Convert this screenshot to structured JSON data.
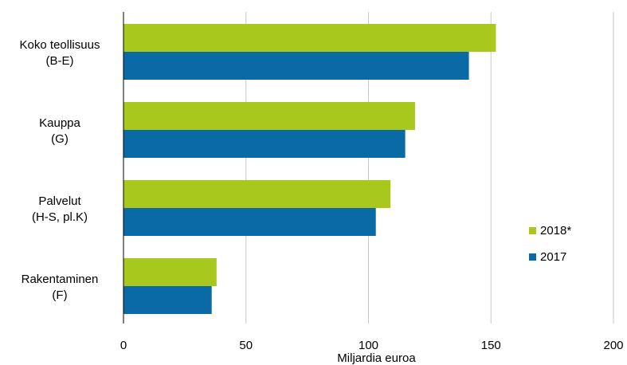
{
  "chart_data": {
    "type": "bar",
    "orientation": "horizontal",
    "categories": [
      [
        "Koko teollisuus",
        "(B-E)"
      ],
      [
        "Kauppa",
        "(G)"
      ],
      [
        "Palvelut",
        "(H-S, pl.K)"
      ],
      [
        "Rakentaminen",
        "(F)"
      ]
    ],
    "series": [
      {
        "name": "2018*",
        "color": "#a8c81e",
        "values": [
          152,
          119,
          109,
          38
        ]
      },
      {
        "name": "2017",
        "color": "#0a6aa6",
        "values": [
          141,
          115,
          103,
          36
        ]
      }
    ],
    "xlabel": "Miljardia euroa",
    "xlim": [
      0,
      200
    ],
    "xticks": [
      0,
      50,
      100,
      150,
      200
    ],
    "grid": true,
    "legend_position": "right"
  }
}
